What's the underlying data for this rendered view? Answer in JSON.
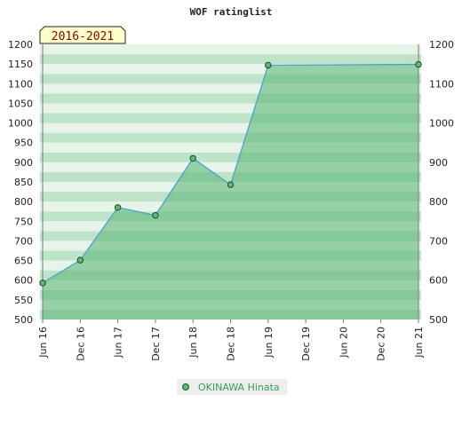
{
  "chart_data": {
    "type": "area",
    "title": "WOF ratinglist",
    "badge": "2016-2021",
    "x_ticks": [
      "Jun 16",
      "Dec 16",
      "Jun 17",
      "Dec 17",
      "Jun 18",
      "Dec 18",
      "Jun 19",
      "Dec 19",
      "Jun 20",
      "Dec 20",
      "Jun 21"
    ],
    "ylim_left": [
      500,
      1200
    ],
    "yticks_left": [
      500,
      550,
      600,
      650,
      700,
      750,
      800,
      850,
      900,
      950,
      1000,
      1050,
      1100,
      1150,
      1200
    ],
    "ylim_right": [
      500,
      1200
    ],
    "yticks_right": [
      500,
      600,
      700,
      800,
      900,
      1000,
      1100,
      1200
    ],
    "grid": "horizontal bands",
    "legend_position": "bottom-center",
    "series": [
      {
        "name": "OKINAWA Hinata",
        "x": [
          "Jun 16",
          "Dec 16",
          "Jun 17",
          "Dec 17",
          "Jun 18",
          "Dec 18",
          "Jun 19",
          "Jun 21"
        ],
        "values": [
          593,
          651,
          785,
          765,
          910,
          843,
          1147,
          1149
        ],
        "color": "#4f9fd0",
        "fill": "#5fb87a",
        "marker_color": "#2f7a3f"
      }
    ]
  }
}
